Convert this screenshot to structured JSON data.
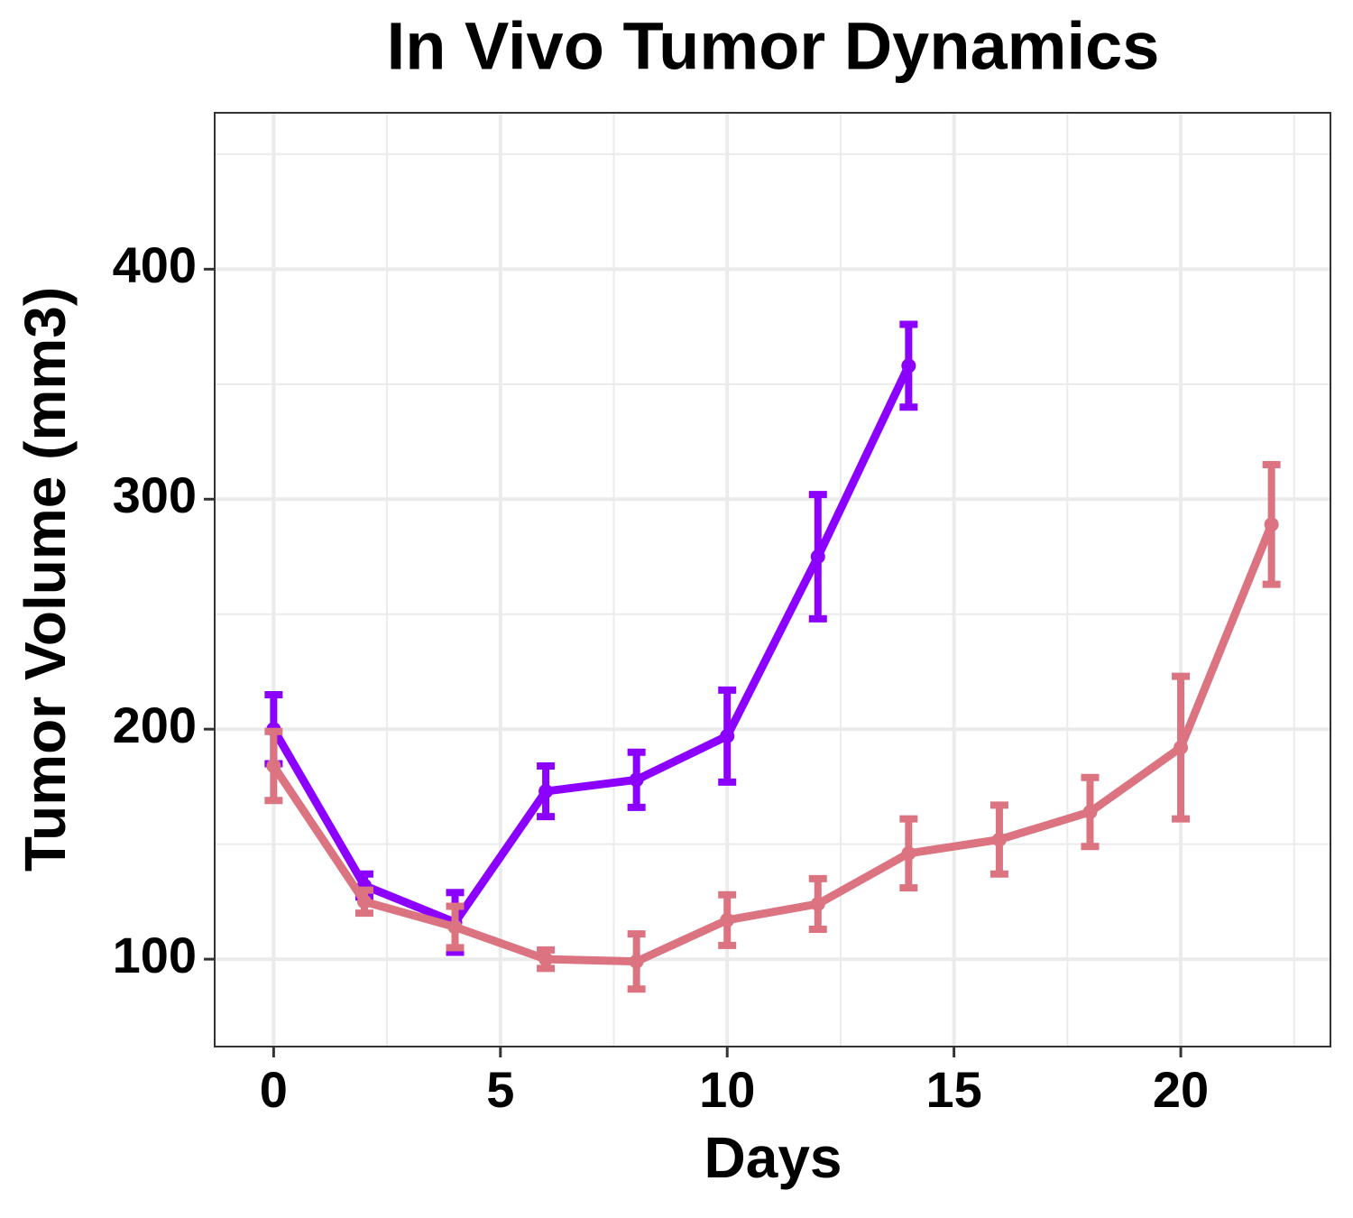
{
  "chart_data": {
    "type": "line",
    "title": "In Vivo Tumor Dynamics",
    "x_label": "Days",
    "y_label": "Tumor Volume (mm3)",
    "xlim": [
      -1.3,
      23.3
    ],
    "ylim": [
      62,
      468
    ],
    "xticks": [
      0,
      5,
      10,
      15,
      20
    ],
    "yticks": [
      100,
      200,
      300,
      400
    ],
    "xminor": [
      2.5,
      7.5,
      12.5,
      17.5,
      22.5
    ],
    "yminor": [
      150,
      250,
      350,
      450
    ],
    "grid": true,
    "series": [
      {
        "color": "#8b00ff",
        "x": [
          0,
          2,
          4,
          6,
          8,
          10,
          12,
          14
        ],
        "values": [
          200,
          132,
          116,
          173,
          178,
          197,
          275,
          358
        ],
        "errors": [
          15,
          5,
          13,
          11,
          12,
          20,
          27,
          18
        ]
      },
      {
        "color": "#db7480",
        "x": [
          0,
          2,
          4,
          6,
          8,
          10,
          12,
          14,
          16,
          18,
          20,
          22
        ],
        "values": [
          184,
          125,
          114,
          100,
          99,
          117,
          124,
          146,
          152,
          164,
          192,
          289
        ],
        "errors": [
          15,
          5,
          9,
          4,
          12,
          11,
          11,
          15,
          15,
          15,
          31,
          26
        ]
      }
    ]
  }
}
